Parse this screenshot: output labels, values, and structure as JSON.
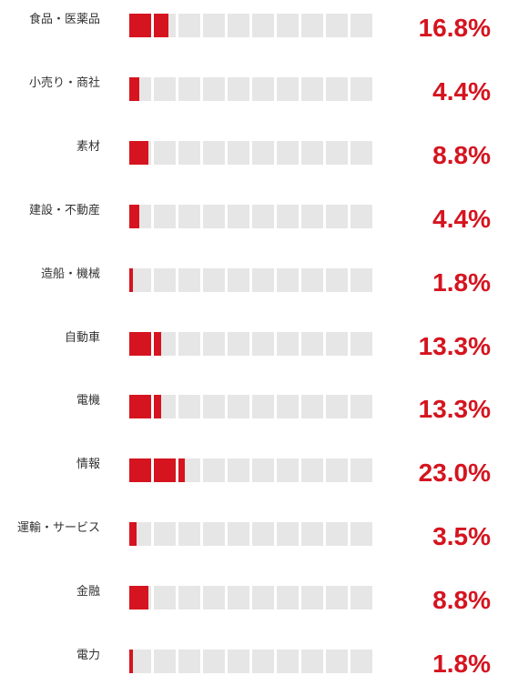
{
  "chart_data": {
    "type": "bar",
    "categories": [
      "食品・医薬品",
      "小売り・商社",
      "素材",
      "建設・不動産",
      "造船・機械",
      "自動車",
      "電機",
      "情報",
      "運輸・サービス",
      "金融",
      "電力"
    ],
    "values": [
      16.8,
      4.4,
      8.8,
      4.4,
      1.8,
      13.3,
      13.3,
      23.0,
      3.5,
      8.8,
      1.8
    ],
    "labels": [
      "16.8%",
      "4.4%",
      "8.8%",
      "4.4%",
      "1.8%",
      "13.3%",
      "13.3%",
      "23.0%",
      "3.5%",
      "8.8%",
      "1.8%"
    ],
    "unit": "%",
    "segments": 10,
    "segment_value": 10,
    "xlim": [
      0,
      100
    ],
    "title": "",
    "xlabel": "",
    "ylabel": "",
    "grid": false,
    "legend": "none"
  },
  "colors": {
    "bar": "#d5141f",
    "track": "#e6e6e6",
    "value_text": "#d5141f",
    "label_text": "#333333"
  }
}
